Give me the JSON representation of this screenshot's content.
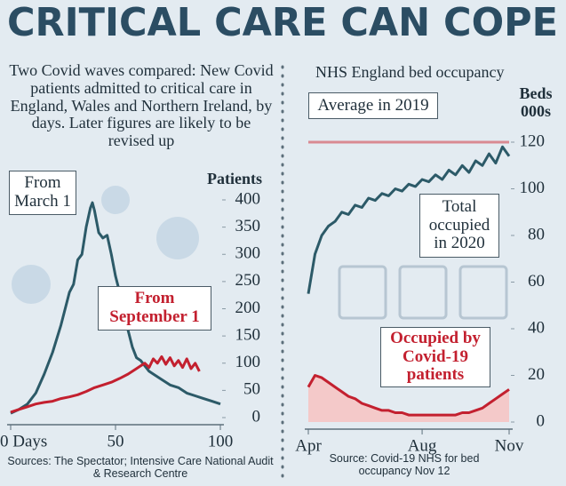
{
  "title": "CRITICAL CARE CAN COPE",
  "chart_data": [
    {
      "type": "line",
      "subtitle": "Two Covid waves compared: New Covid patients admitted to critical care in England, Wales and Northern Ireland, by days. Later figures are likely to be revised up",
      "y_label": "Patients",
      "xlim": [
        0,
        100
      ],
      "xticks": [
        {
          "value": 0,
          "label": "0 Days"
        },
        50,
        100
      ],
      "ylim": [
        0,
        400
      ],
      "yticks": [
        0,
        50,
        100,
        150,
        200,
        250,
        300,
        350,
        400
      ],
      "series": [
        {
          "name": "From March 1",
          "color": "#2c5a68",
          "x": [
            0,
            4,
            8,
            12,
            16,
            20,
            24,
            28,
            30,
            32,
            34,
            36,
            38,
            39,
            40,
            42,
            44,
            46,
            48,
            50,
            52,
            54,
            56,
            58,
            60,
            62,
            64,
            66,
            68,
            72,
            76,
            80,
            84,
            88,
            92,
            96,
            100
          ],
          "values": [
            8,
            15,
            25,
            45,
            80,
            120,
            170,
            230,
            245,
            290,
            300,
            350,
            385,
            395,
            380,
            340,
            330,
            335,
            300,
            260,
            230,
            195,
            160,
            130,
            110,
            105,
            95,
            85,
            80,
            70,
            60,
            55,
            45,
            40,
            35,
            30,
            25
          ]
        },
        {
          "name": "From September 1",
          "color": "#c3202f",
          "x": [
            0,
            4,
            8,
            12,
            16,
            20,
            24,
            28,
            32,
            36,
            40,
            44,
            48,
            52,
            56,
            60,
            62,
            64,
            66,
            68,
            70,
            72,
            74,
            76,
            78,
            80,
            82,
            84,
            86,
            88,
            90
          ],
          "values": [
            10,
            15,
            20,
            25,
            28,
            30,
            35,
            38,
            42,
            48,
            55,
            60,
            65,
            72,
            80,
            90,
            95,
            100,
            92,
            108,
            100,
            112,
            98,
            110,
            95,
            105,
            92,
            108,
            90,
            100,
            85
          ]
        }
      ],
      "source": "Sources: The Spectator; Intensive Care National Audit & Research Centre"
    },
    {
      "type": "line",
      "title": "NHS England bed occupancy",
      "y_label": "Beds 000s",
      "categories": [
        "Apr",
        null,
        null,
        null,
        null,
        null,
        null,
        null,
        null,
        null,
        null,
        null,
        null,
        null,
        null,
        null,
        null,
        "Aug",
        null,
        null,
        null,
        null,
        null,
        null,
        null,
        null,
        null,
        null,
        null,
        null,
        "Nov"
      ],
      "ylim": [
        0,
        124
      ],
      "yticks": [
        0,
        20,
        40,
        60,
        80,
        100,
        120
      ],
      "series": [
        {
          "name": "Average in 2019",
          "color": "#d98a92",
          "values": [
            120,
            120,
            120,
            120,
            120,
            120,
            120,
            120,
            120,
            120,
            120,
            120,
            120,
            120,
            120,
            120,
            120,
            120,
            120,
            120,
            120,
            120,
            120,
            120,
            120,
            120,
            120,
            120,
            120,
            120,
            120
          ]
        },
        {
          "name": "Total occupied in 2020",
          "color": "#2c5a68",
          "values": [
            55,
            72,
            80,
            84,
            86,
            90,
            89,
            93,
            92,
            96,
            95,
            98,
            97,
            100,
            99,
            102,
            101,
            104,
            103,
            106,
            104,
            108,
            106,
            110,
            107,
            112,
            110,
            115,
            111,
            118,
            114
          ]
        },
        {
          "name": "Occupied by Covid-19 patients",
          "color": "#c3202f",
          "area_color": "#f4c9c9",
          "values": [
            15,
            20,
            19,
            17,
            15,
            13,
            11,
            10,
            8,
            7,
            6,
            5,
            5,
            4,
            4,
            3,
            3,
            3,
            3,
            3,
            3,
            3,
            3,
            4,
            4,
            5,
            6,
            8,
            10,
            12,
            14
          ]
        }
      ],
      "source": "Source: Covid-19 NHS for bed occupancy Nov 12"
    }
  ]
}
